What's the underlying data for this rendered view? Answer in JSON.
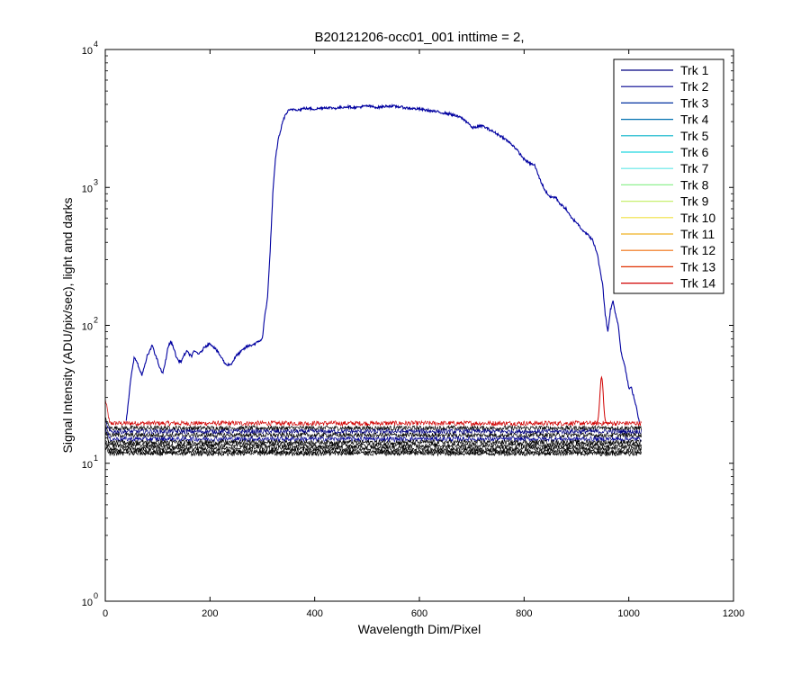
{
  "chart_data": {
    "type": "line",
    "title": "B20121206-occ01_001 inttime = 2,",
    "xlabel": "Wavelength Dim/Pixel",
    "ylabel": "Signal Intensity (ADU/pix/sec), light and darks",
    "xlim": [
      0,
      1200
    ],
    "ylim": [
      1,
      10000
    ],
    "yscale": "log",
    "grid": false,
    "legend_position": "top-right",
    "x_ticks": [
      "0",
      "200",
      "400",
      "600",
      "800",
      "1000",
      "1200"
    ],
    "y_ticks": [
      {
        "base": "10",
        "exp": "0",
        "value": 1
      },
      {
        "base": "10",
        "exp": "1",
        "value": 10
      },
      {
        "base": "10",
        "exp": "2",
        "value": 100
      },
      {
        "base": "10",
        "exp": "3",
        "value": 1000
      },
      {
        "base": "10",
        "exp": "4",
        "value": 10000
      }
    ],
    "series": [
      {
        "name": "Trk 1",
        "color": "#000080"
      },
      {
        "name": "Trk 2",
        "color": "#00008f"
      },
      {
        "name": "Trk 3",
        "color": "#0030a0"
      },
      {
        "name": "Trk 4",
        "color": "#0070b0"
      },
      {
        "name": "Trk 5",
        "color": "#00b0c8"
      },
      {
        "name": "Trk 6",
        "color": "#20d8e0"
      },
      {
        "name": "Trk 7",
        "color": "#60e8e8"
      },
      {
        "name": "Trk 8",
        "color": "#90f090"
      },
      {
        "name": "Trk 9",
        "color": "#c8f070"
      },
      {
        "name": "Trk 10",
        "color": "#f0e040"
      },
      {
        "name": "Trk 11",
        "color": "#f0b020"
      },
      {
        "name": "Trk 12",
        "color": "#f07010"
      },
      {
        "name": "Trk 13",
        "color": "#e03000"
      },
      {
        "name": "Trk 14",
        "color": "#d00000"
      }
    ],
    "signal_trace": {
      "color": "#0000a0",
      "x": [
        40,
        45,
        50,
        55,
        60,
        65,
        70,
        75,
        80,
        85,
        90,
        95,
        100,
        105,
        110,
        115,
        120,
        125,
        130,
        135,
        140,
        145,
        150,
        155,
        160,
        165,
        170,
        180,
        190,
        200,
        210,
        220,
        230,
        240,
        250,
        260,
        270,
        280,
        290,
        300,
        305,
        310,
        315,
        320,
        325,
        330,
        335,
        340,
        345,
        350,
        360,
        370,
        380,
        400,
        420,
        440,
        460,
        480,
        500,
        520,
        540,
        560,
        580,
        600,
        620,
        640,
        660,
        680,
        695,
        700,
        720,
        740,
        760,
        780,
        800,
        810,
        820,
        830,
        840,
        850,
        860,
        870,
        880,
        890,
        900,
        910,
        920,
        930,
        940,
        945,
        950,
        955,
        960,
        965,
        970,
        975,
        980,
        985,
        990,
        995,
        1000,
        1005,
        1010,
        1015,
        1020
      ],
      "y": [
        20,
        30,
        45,
        58,
        55,
        48,
        44,
        50,
        60,
        65,
        72,
        62,
        55,
        48,
        45,
        55,
        70,
        76,
        70,
        60,
        55,
        55,
        60,
        65,
        62,
        60,
        65,
        62,
        70,
        74,
        68,
        60,
        52,
        52,
        60,
        65,
        70,
        72,
        75,
        80,
        120,
        160,
        350,
        900,
        1600,
        2200,
        2600,
        3100,
        3400,
        3600,
        3700,
        3650,
        3750,
        3700,
        3800,
        3750,
        3850,
        3800,
        3900,
        3800,
        3900,
        3850,
        3750,
        3700,
        3600,
        3500,
        3400,
        3200,
        2900,
        2700,
        2800,
        2550,
        2300,
        2000,
        1600,
        1500,
        1450,
        1150,
        950,
        850,
        850,
        750,
        700,
        600,
        560,
        500,
        460,
        420,
        330,
        250,
        200,
        120,
        90,
        130,
        150,
        120,
        100,
        65,
        55,
        45,
        35,
        35,
        30,
        25,
        20
      ]
    },
    "noise_bands": [
      {
        "color": "#d00000",
        "level": 19.5,
        "start": 29
      },
      {
        "color": "#000000",
        "level": 18.0,
        "start": 21
      },
      {
        "color": "#000080",
        "level": 17.0,
        "start": 20
      },
      {
        "color": "#000000",
        "level": 16.0,
        "start": 19
      },
      {
        "color": "#00008f",
        "level": 15.0,
        "start": 18
      },
      {
        "color": "#000000",
        "level": 14.2,
        "start": 17
      },
      {
        "color": "#000000",
        "level": 13.5,
        "start": 16
      },
      {
        "color": "#000000",
        "level": 12.8,
        "start": 15
      },
      {
        "color": "#000000",
        "level": 12.2,
        "start": 14
      },
      {
        "color": "#000000",
        "level": 11.8,
        "start": 13
      }
    ],
    "red_peak": {
      "color": "#d00000",
      "x": 948,
      "peak": 42,
      "width": 4
    }
  }
}
